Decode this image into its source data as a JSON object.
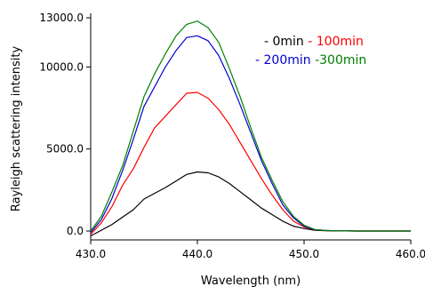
{
  "chart_data": {
    "type": "line",
    "title": "",
    "xlabel": "Wavelength (nm)",
    "ylabel": "Rayleigh scattering intensity",
    "xlim": [
      430,
      460
    ],
    "ylim": [
      0,
      13000
    ],
    "xticks": [
      430,
      440,
      450,
      460
    ],
    "xtick_labels": [
      "430.0",
      "440.0",
      "450.0",
      "460.0"
    ],
    "yticks": [
      0,
      5000,
      10000,
      13000
    ],
    "ytick_labels": [
      "0.0",
      "5000.0",
      "10000.0",
      "13000.0"
    ],
    "grid": false,
    "legend_position": "top-right",
    "series": [
      {
        "name": "- 0min",
        "color": "#000000",
        "x": [
          430,
          431,
          432,
          433,
          434,
          435,
          436,
          437,
          438,
          439,
          440,
          441,
          442,
          443,
          444,
          445,
          446,
          447,
          448,
          449,
          450,
          451,
          452,
          453,
          454,
          455,
          456,
          457,
          458,
          459,
          460
        ],
        "y": [
          -300,
          50,
          400,
          850,
          1300,
          1950,
          2300,
          2650,
          3050,
          3450,
          3600,
          3550,
          3300,
          2900,
          2400,
          1900,
          1400,
          1000,
          600,
          300,
          150,
          50,
          20,
          10,
          5,
          0,
          0,
          0,
          0,
          0,
          0
        ]
      },
      {
        "name": "- 100min",
        "color": "#ff0000",
        "x": [
          430,
          431,
          432,
          433,
          434,
          435,
          436,
          437,
          438,
          439,
          440,
          441,
          442,
          443,
          444,
          445,
          446,
          447,
          448,
          449,
          450,
          451,
          452,
          453,
          454,
          455,
          456,
          457,
          458,
          459,
          460
        ],
        "y": [
          -200,
          500,
          1500,
          2800,
          3800,
          5100,
          6300,
          7000,
          7700,
          8400,
          8450,
          8100,
          7400,
          6500,
          5400,
          4300,
          3200,
          2200,
          1300,
          600,
          250,
          80,
          30,
          10,
          5,
          0,
          0,
          0,
          0,
          0,
          0
        ]
      },
      {
        "name": "- 200min",
        "color": "#0000cc",
        "x": [
          430,
          431,
          432,
          433,
          434,
          435,
          436,
          437,
          438,
          439,
          440,
          441,
          442,
          443,
          444,
          445,
          446,
          447,
          448,
          449,
          450,
          451,
          452,
          453,
          454,
          455,
          456,
          457,
          458,
          459,
          460
        ],
        "y": [
          -100,
          700,
          2000,
          3700,
          5600,
          7600,
          8800,
          10000,
          11000,
          11800,
          11900,
          11600,
          10700,
          9300,
          7700,
          6000,
          4300,
          2900,
          1600,
          800,
          300,
          80,
          30,
          10,
          5,
          0,
          0,
          0,
          0,
          0,
          0
        ]
      },
      {
        "name": "-300min",
        "color": "#008000",
        "x": [
          430,
          431,
          432,
          433,
          434,
          435,
          436,
          437,
          438,
          439,
          440,
          441,
          442,
          443,
          444,
          445,
          446,
          447,
          448,
          449,
          450,
          451,
          452,
          453,
          454,
          455,
          456,
          457,
          458,
          459,
          460
        ],
        "y": [
          0,
          900,
          2400,
          4000,
          6100,
          8200,
          9600,
          10800,
          11900,
          12600,
          12800,
          12400,
          11500,
          9900,
          8200,
          6300,
          4500,
          3100,
          1800,
          900,
          350,
          90,
          30,
          10,
          5,
          0,
          0,
          0,
          0,
          0,
          0
        ]
      }
    ]
  }
}
